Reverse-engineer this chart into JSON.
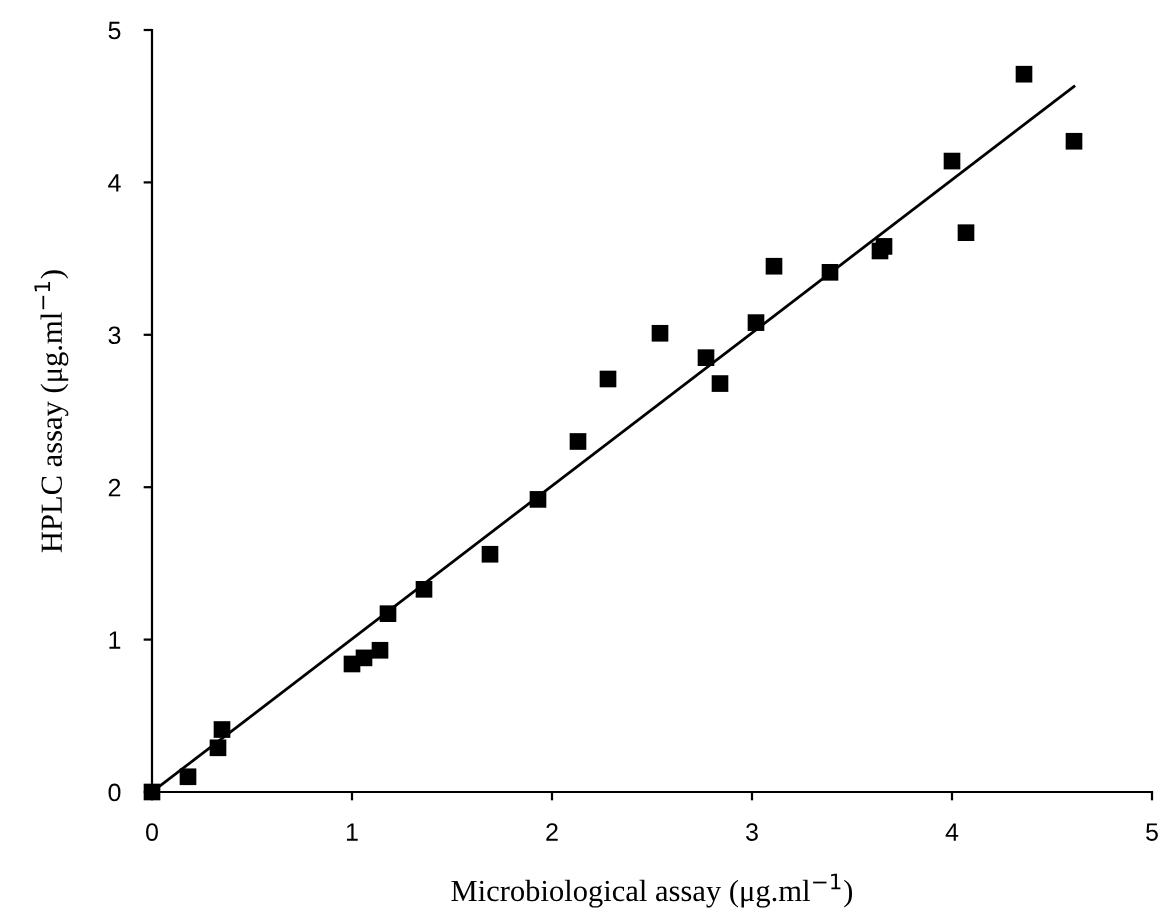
{
  "chart_data": {
    "type": "scatter",
    "xlabel": "Microbiological assay (μg.ml$^{−1}$)",
    "ylabel": "HPLC assay (μg.ml$^{−1}$)",
    "xlim": [
      0,
      5
    ],
    "ylim": [
      0,
      5
    ],
    "xticks": [
      0,
      1,
      2,
      3,
      4,
      5
    ],
    "yticks": [
      0,
      1,
      2,
      3,
      4,
      5
    ],
    "grid": false,
    "series": [
      {
        "color": "#000000",
        "marker": "square",
        "x": [
          0,
          0.18,
          0.33,
          0.35,
          1.0,
          1.06,
          1.14,
          1.18,
          1.36,
          1.69,
          1.93,
          2.13,
          2.28,
          2.54,
          2.77,
          2.84,
          3.02,
          3.11,
          3.39,
          3.64,
          3.66,
          4.0,
          4.07,
          4.36,
          4.61
        ],
        "values": [
          0,
          0.1,
          0.29,
          0.41,
          0.84,
          0.88,
          0.93,
          1.17,
          1.33,
          1.56,
          1.92,
          2.3,
          2.71,
          3.01,
          2.85,
          2.68,
          3.08,
          3.45,
          3.41,
          3.55,
          3.58,
          4.14,
          3.67,
          4.71,
          4.27
        ]
      },
      {
        "type": "line",
        "color": "#000000",
        "marker": "none",
        "line_style": "solid",
        "x": [
          0,
          4.61
        ],
        "values": [
          0,
          4.63
        ]
      }
    ]
  }
}
